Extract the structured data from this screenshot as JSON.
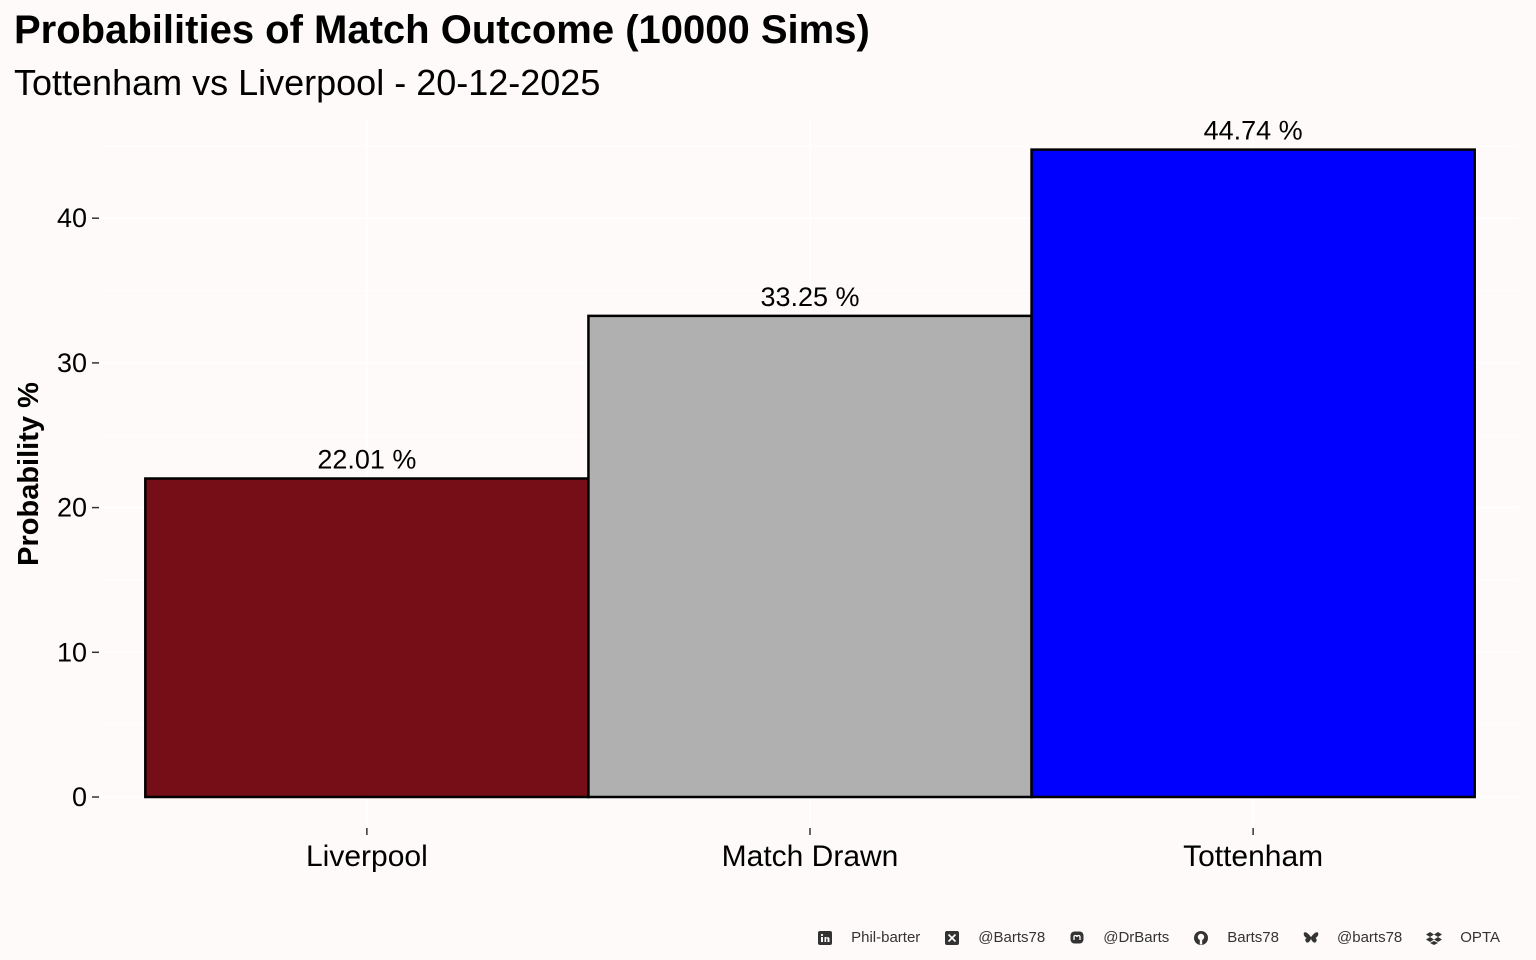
{
  "chart_data": {
    "type": "bar",
    "title": "Probabilities of Match Outcome (10000 Sims)",
    "subtitle": "Tottenham vs Liverpool - 20-12-2025",
    "xlabel": "",
    "ylabel": "Probability %",
    "categories": [
      "Liverpool",
      "Match Drawn",
      "Tottenham"
    ],
    "values": [
      22.01,
      33.25,
      44.74
    ],
    "data_labels": [
      "22.01  %",
      "33.25  %",
      "44.74  %"
    ],
    "colors": [
      "#750e17",
      "#b0b0b0",
      "#0000ff"
    ],
    "ylim": [
      0,
      45
    ],
    "yticks": [
      0,
      10,
      20,
      30,
      40
    ],
    "grid": true,
    "legend": "none"
  },
  "footer": {
    "linkedin": "Phil-barter",
    "x": "@Barts78",
    "mastodon": "@DrBarts",
    "github": "Barts78",
    "bluesky": "@barts78",
    "source": "OPTA",
    "icons": [
      "linkedin-icon",
      "x-icon",
      "mastodon-icon",
      "github-icon",
      "bluesky-icon",
      "dropbox-icon"
    ]
  }
}
